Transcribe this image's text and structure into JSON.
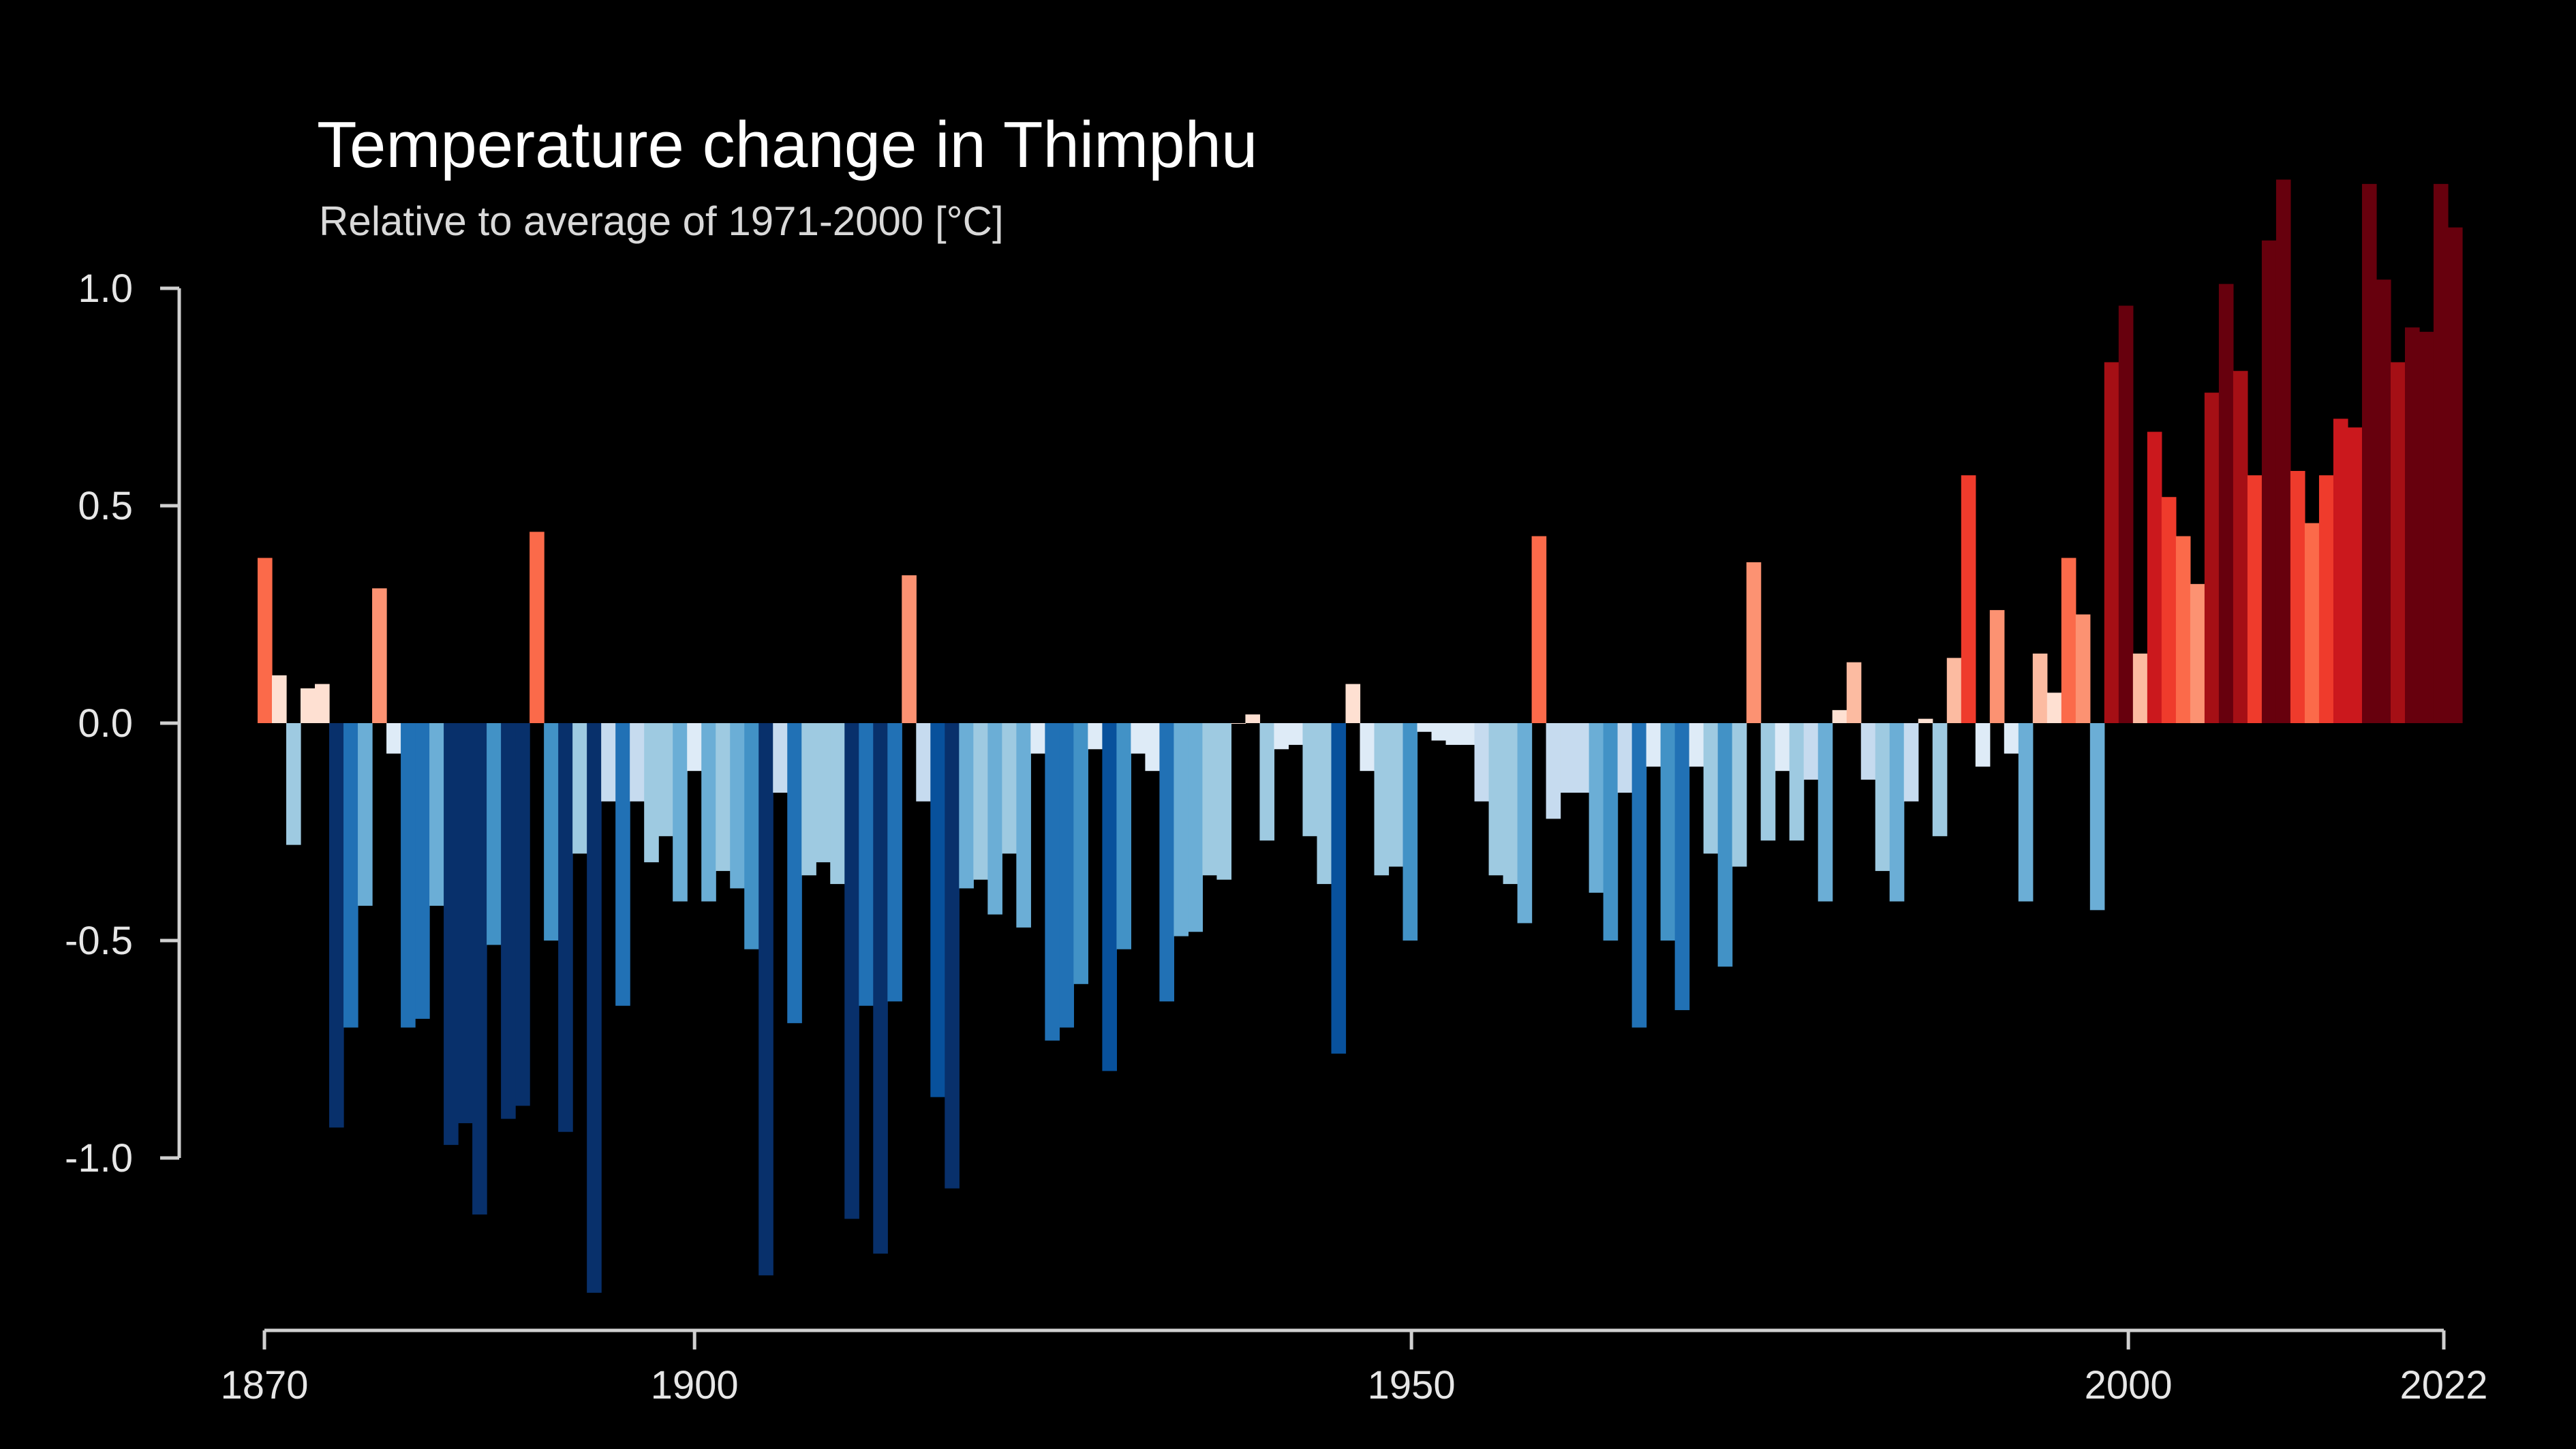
{
  "chart_data": {
    "type": "bar",
    "title": "Temperature change in Thimphu",
    "subtitle": "Relative to average of 1971-2000  [°C]",
    "xlabel": "",
    "ylabel": "",
    "x_start": 1870,
    "x_end": 2022,
    "ylim": [
      -1.32,
      1.25
    ],
    "yticks": [
      {
        "value": 1.0,
        "label": "1.0"
      },
      {
        "value": 0.5,
        "label": "0.5"
      },
      {
        "value": 0.0,
        "label": "0.0"
      },
      {
        "value": -0.5,
        "label": "-0.5"
      },
      {
        "value": -1.0,
        "label": "-1.0"
      }
    ],
    "xticks": [
      {
        "value": 1870,
        "label": "1870"
      },
      {
        "value": 1900,
        "label": "1900"
      },
      {
        "value": 1950,
        "label": "1950"
      },
      {
        "value": 2000,
        "label": "2000"
      },
      {
        "value": 2022,
        "label": "2022"
      }
    ],
    "color_scale": {
      "cold": "#08306b",
      "neutral": "#ffffff",
      "warm": "#67000d",
      "range": 1.0
    },
    "values": [
      0.38,
      0.11,
      -0.28,
      0.08,
      0.09,
      -0.93,
      -0.7,
      -0.42,
      0.31,
      -0.07,
      -0.7,
      -0.68,
      -0.42,
      -0.97,
      -0.92,
      -1.13,
      -0.51,
      -0.91,
      -0.88,
      0.44,
      -0.5,
      -0.94,
      -0.3,
      -1.31,
      -0.18,
      -0.65,
      -0.18,
      -0.32,
      -0.26,
      -0.41,
      -0.11,
      -0.41,
      -0.34,
      -0.38,
      -0.52,
      -1.27,
      -0.16,
      -0.69,
      -0.35,
      -0.32,
      -0.37,
      -1.14,
      -0.65,
      -1.22,
      -0.64,
      0.34,
      -0.18,
      -0.86,
      -1.07,
      -0.38,
      -0.36,
      -0.44,
      -0.3,
      -0.47,
      -0.07,
      -0.73,
      -0.7,
      -0.6,
      -0.06,
      -0.8,
      -0.52,
      -0.07,
      -0.11,
      -0.64,
      -0.49,
      -0.48,
      -0.35,
      -0.36,
      0.0,
      0.02,
      -0.27,
      -0.06,
      -0.05,
      -0.26,
      -0.37,
      -0.76,
      0.09,
      -0.11,
      -0.35,
      -0.33,
      -0.5,
      -0.02,
      -0.04,
      -0.05,
      -0.05,
      -0.18,
      -0.35,
      -0.37,
      -0.46,
      0.43,
      -0.22,
      -0.16,
      -0.16,
      -0.39,
      -0.5,
      -0.16,
      -0.7,
      -0.1,
      -0.5,
      -0.66,
      -0.1,
      -0.3,
      -0.56,
      -0.33,
      0.37,
      -0.27,
      -0.11,
      -0.27,
      -0.13,
      -0.41,
      0.03,
      0.14,
      -0.13,
      -0.34,
      -0.41,
      -0.18,
      0.01,
      -0.26,
      0.15,
      0.57,
      -0.1,
      0.26,
      -0.07,
      -0.41,
      0.16,
      0.07,
      0.38,
      0.25,
      -0.43,
      0.83,
      0.96,
      0.16,
      0.67,
      0.52,
      0.43,
      0.32,
      0.76,
      1.01,
      0.81,
      0.57,
      1.11,
      1.25,
      0.58,
      0.46,
      0.57,
      0.7,
      0.68,
      1.24,
      1.02,
      0.83,
      0.91,
      0.9,
      1.24,
      1.14
    ]
  }
}
